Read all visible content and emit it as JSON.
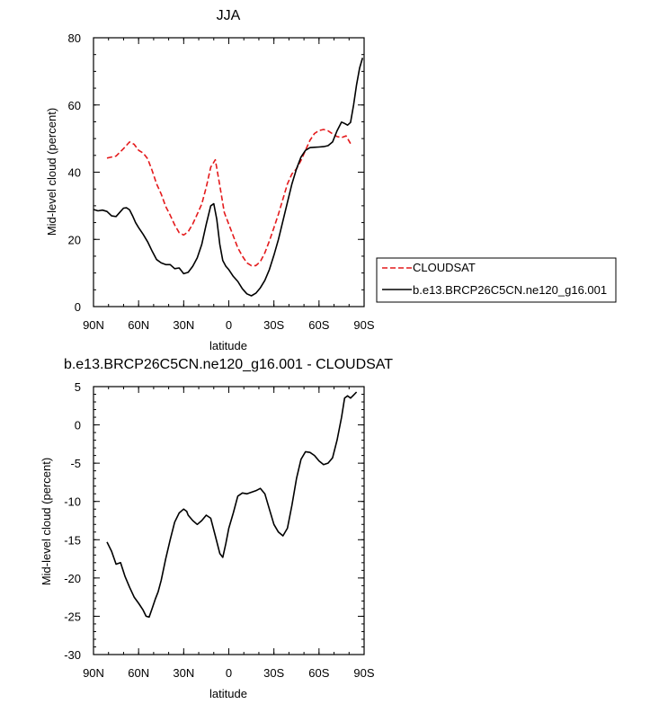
{
  "chart_data": [
    {
      "type": "line",
      "title": "JJA",
      "xlabel": "latitude",
      "ylabel": "Mid-level cloud (percent)",
      "xlim": [
        90,
        -90
      ],
      "ylim": [
        0,
        80
      ],
      "x_ticks": [
        90,
        60,
        30,
        0,
        -30,
        -60,
        -90
      ],
      "x_tick_labels": [
        "90N",
        "60N",
        "30N",
        "0",
        "30S",
        "60S",
        "90S"
      ],
      "y_ticks": [
        0,
        20,
        40,
        60,
        80
      ],
      "y_tick_labels": [
        "0",
        "20",
        "40",
        "60",
        "80"
      ],
      "legend_position": "right",
      "series": [
        {
          "name": "CLOUDSAT",
          "color": "#e41a1c",
          "dash": "dashed",
          "x": [
            81,
            75,
            70,
            66,
            63,
            60,
            57,
            54,
            51,
            48,
            45,
            42,
            39,
            36,
            33,
            30,
            27,
            24,
            21,
            18,
            15,
            12,
            9,
            6,
            3,
            0,
            -3,
            -6,
            -9,
            -12,
            -15,
            -18,
            -21,
            -24,
            -27,
            -30,
            -33,
            -36,
            -39,
            -42,
            -45,
            -48,
            -51,
            -54,
            -57,
            -60,
            -63,
            -66,
            -69,
            -72,
            -75,
            -78,
            -81
          ],
          "values": [
            44.2,
            44.8,
            47.0,
            49.0,
            48.3,
            46.5,
            45.7,
            44.0,
            40.5,
            36.5,
            33.5,
            29.8,
            27.2,
            24.3,
            22.0,
            21.3,
            22.3,
            24.6,
            27.5,
            30.5,
            35.5,
            41.5,
            43.7,
            36.0,
            28.0,
            24.5,
            21.0,
            17.5,
            15.0,
            13.0,
            12.2,
            12.2,
            13.4,
            16.0,
            19.5,
            23.5,
            27.5,
            32.0,
            36.5,
            39.5,
            41.0,
            43.5,
            46.5,
            49.5,
            51.5,
            52.4,
            52.7,
            52.3,
            51.4,
            50.6,
            50.3,
            50.8,
            48.5
          ]
        },
        {
          "name": "b.e13.BRCP26C5CN.ne120_g16.001",
          "color": "#000000",
          "dash": "solid",
          "x": [
            90,
            87,
            84,
            81,
            78,
            75,
            72,
            70,
            68,
            66,
            64,
            62,
            60,
            57,
            54,
            51,
            48,
            45,
            42,
            39,
            36,
            33,
            30,
            27,
            24,
            21,
            18,
            15,
            12,
            10,
            8,
            6,
            4,
            2,
            0,
            -3,
            -6,
            -9,
            -12,
            -15,
            -18,
            -21,
            -24,
            -27,
            -30,
            -33,
            -36,
            -39,
            -42,
            -45,
            -48,
            -51,
            -54,
            -57,
            -60,
            -63,
            -66,
            -69,
            -72,
            -75,
            -77,
            -79,
            -81,
            -83,
            -85,
            -87,
            -89
          ],
          "values": [
            28.9,
            28.5,
            28.7,
            28.3,
            27.0,
            26.8,
            28.3,
            29.3,
            29.4,
            28.8,
            27.0,
            25.0,
            23.5,
            21.5,
            19.3,
            16.5,
            14.0,
            13.0,
            12.5,
            12.5,
            11.3,
            11.5,
            9.8,
            10.2,
            12.0,
            14.5,
            18.5,
            24.5,
            30.0,
            30.6,
            26.0,
            18.5,
            13.7,
            12.0,
            11.0,
            9.0,
            7.5,
            5.3,
            3.8,
            3.2,
            4.0,
            5.6,
            7.8,
            11.0,
            15.3,
            20.0,
            25.5,
            31.0,
            36.5,
            41.0,
            44.5,
            46.5,
            47.3,
            47.4,
            47.5,
            47.6,
            47.9,
            49.0,
            52.3,
            54.9,
            54.5,
            54.0,
            54.8,
            60.0,
            66.0,
            71.0,
            74.0
          ]
        }
      ]
    },
    {
      "type": "line",
      "title": "b.e13.BRCP26C5CN.ne120_g16.001 - CLOUDSAT",
      "xlabel": "latitude",
      "ylabel": "Mid-level cloud (percent)",
      "xlim": [
        90,
        -90
      ],
      "ylim": [
        -30,
        5
      ],
      "x_ticks": [
        90,
        60,
        30,
        0,
        -30,
        -60,
        -90
      ],
      "x_tick_labels": [
        "90N",
        "60N",
        "30N",
        "0",
        "30S",
        "60S",
        "90S"
      ],
      "y_ticks": [
        -30,
        -25,
        -20,
        -15,
        -10,
        -5,
        0,
        5
      ],
      "y_tick_labels": [
        "-30",
        "-25",
        "-20",
        "-15",
        "-10",
        "-5",
        "0",
        "5"
      ],
      "series": [
        {
          "name": "",
          "color": "#000000",
          "dash": "solid",
          "x": [
            81,
            78,
            75,
            72,
            69,
            66,
            63,
            60,
            57,
            55,
            53,
            51,
            49,
            47,
            45,
            42,
            39,
            36,
            33,
            30,
            28,
            27,
            24,
            21,
            18,
            15,
            12,
            9,
            6,
            4,
            2,
            0,
            -3,
            -6,
            -9,
            -12,
            -15,
            -18,
            -21,
            -24,
            -27,
            -30,
            -33,
            -36,
            -39,
            -42,
            -45,
            -48,
            -51,
            -54,
            -57,
            -60,
            -63,
            -66,
            -69,
            -72,
            -75,
            -77,
            -79,
            -81,
            -83,
            -85
          ],
          "values": [
            -15.3,
            -16.5,
            -18.2,
            -18.0,
            -19.8,
            -21.2,
            -22.5,
            -23.3,
            -24.2,
            -25.0,
            -25.1,
            -24.0,
            -22.8,
            -21.8,
            -20.3,
            -17.5,
            -15.0,
            -12.7,
            -11.5,
            -11.0,
            -11.3,
            -11.8,
            -12.5,
            -13.0,
            -12.5,
            -11.8,
            -12.2,
            -14.5,
            -16.8,
            -17.3,
            -15.5,
            -13.5,
            -11.5,
            -9.3,
            -8.9,
            -9.0,
            -8.8,
            -8.6,
            -8.3,
            -9.0,
            -11.0,
            -13.0,
            -14.0,
            -14.5,
            -13.5,
            -10.5,
            -7.0,
            -4.5,
            -3.5,
            -3.6,
            -4.0,
            -4.7,
            -5.2,
            -5.0,
            -4.3,
            -2.0,
            1.0,
            3.5,
            3.8,
            3.5,
            3.9,
            4.3
          ]
        }
      ]
    }
  ]
}
